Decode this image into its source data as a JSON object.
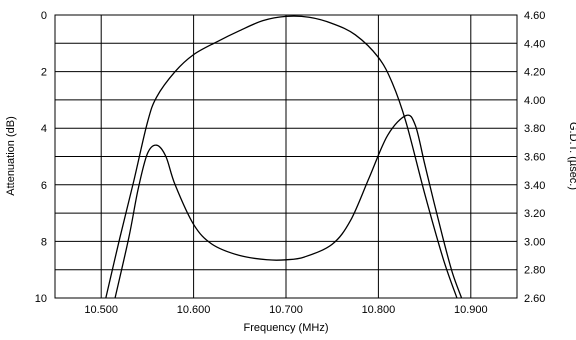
{
  "chart_data": {
    "type": "line",
    "xlabel": "Frequency (MHz)",
    "ylabel_left": "Attenuation (dB)",
    "ylabel_right": "G.D.T. (µsec.)",
    "xlim": [
      10.45,
      10.95
    ],
    "ylim_left": [
      0,
      10
    ],
    "ylim_left_inverted": true,
    "ylim_right": [
      2.6,
      4.6
    ],
    "x_ticks": [
      10.5,
      10.6,
      10.7,
      10.8,
      10.9
    ],
    "x_tick_labels": [
      "10.500",
      "10.600",
      "10.700",
      "10.800",
      "10.900"
    ],
    "y_left_ticks": [
      0,
      2,
      4,
      6,
      8,
      10
    ],
    "y_left_tick_labels": [
      "0",
      "2",
      "4",
      "6",
      "8",
      "10"
    ],
    "y_right_ticks": [
      2.6,
      2.8,
      3.0,
      3.2,
      3.4,
      3.6,
      3.8,
      4.0,
      4.2,
      4.4,
      4.6
    ],
    "y_right_tick_labels": [
      "2.60",
      "2.80",
      "3.00",
      "3.20",
      "3.40",
      "3.60",
      "3.80",
      "4.00",
      "4.20",
      "4.40",
      "4.60"
    ],
    "x_grid": [
      10.5,
      10.6,
      10.7,
      10.8,
      10.9
    ],
    "y_left_grid": [
      1,
      2,
      3,
      4,
      5,
      6,
      7,
      8,
      9
    ],
    "grid": true,
    "series": [
      {
        "axis": "left",
        "x": [
          10.505,
          10.52,
          10.535,
          10.55,
          10.56,
          10.58,
          10.6,
          10.625,
          10.65,
          10.675,
          10.7,
          10.725,
          10.75,
          10.775,
          10.8,
          10.815,
          10.83,
          10.85,
          10.87,
          10.885
        ],
        "y": [
          10,
          7.9,
          5.9,
          3.8,
          2.9,
          2.0,
          1.4,
          0.95,
          0.55,
          0.2,
          0.05,
          0.08,
          0.3,
          0.7,
          1.5,
          2.4,
          3.8,
          6.3,
          8.6,
          10
        ]
      },
      {
        "axis": "right",
        "x": [
          10.515,
          10.53,
          10.54,
          10.55,
          10.56,
          10.57,
          10.58,
          10.6,
          10.62,
          10.65,
          10.68,
          10.7,
          10.72,
          10.75,
          10.77,
          10.79,
          10.81,
          10.83,
          10.84,
          10.85,
          10.86,
          10.87,
          10.88,
          10.89
        ],
        "y": [
          2.6,
          3.03,
          3.37,
          3.62,
          3.68,
          3.6,
          3.4,
          3.12,
          2.98,
          2.9,
          2.87,
          2.87,
          2.89,
          2.98,
          3.15,
          3.45,
          3.75,
          3.89,
          3.82,
          3.55,
          3.28,
          3.02,
          2.78,
          2.6
        ]
      }
    ]
  }
}
